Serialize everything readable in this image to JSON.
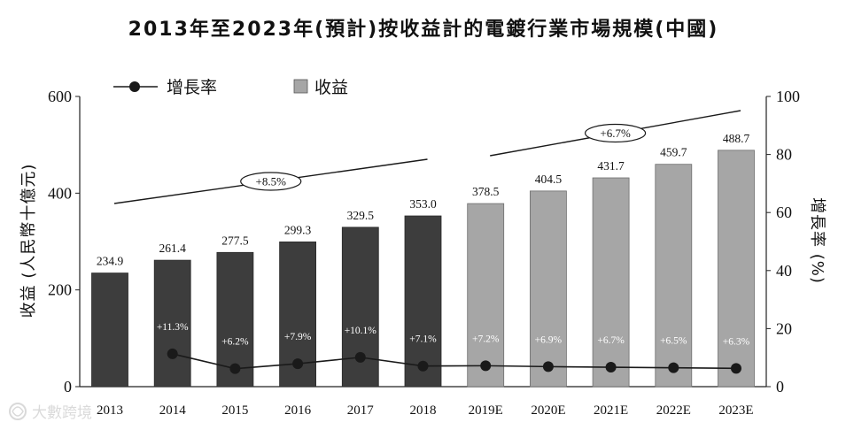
{
  "chart_data": {
    "type": "bar",
    "title": "2013年至2023年(預計)按收益計的電鍍行業市場規模(中國)",
    "ylabel_left": "收益 (人民幣十億元)",
    "ylabel_right": "增長率 (%)",
    "categories": [
      "2013",
      "2014",
      "2015",
      "2016",
      "2017",
      "2018",
      "2019E",
      "2020E",
      "2021E",
      "2022E",
      "2023E"
    ],
    "series": [
      {
        "name": "收益",
        "values": [
          234.9,
          261.4,
          277.5,
          299.3,
          329.5,
          353.0,
          378.5,
          404.5,
          431.7,
          459.7,
          488.7
        ],
        "value_labels": [
          "234.9",
          "261.4",
          "277.5",
          "299.3",
          "329.5",
          "353.0",
          "378.5",
          "404.5",
          "431.7",
          "459.7",
          "488.7"
        ]
      },
      {
        "name": "增長率",
        "values": [
          null,
          11.3,
          6.2,
          7.9,
          10.1,
          7.1,
          7.2,
          6.9,
          6.7,
          6.5,
          6.3
        ],
        "value_labels": [
          "",
          "+11.3%",
          "+6.2%",
          "+7.9%",
          "+10.1%",
          "+7.1%",
          "+7.2%",
          "+6.9%",
          "+6.7%",
          "+6.5%",
          "+6.3%"
        ]
      }
    ],
    "ylim_left": [
      0,
      600
    ],
    "yticks_left": [
      0,
      200,
      400,
      600
    ],
    "ylim_right": [
      0,
      100
    ],
    "yticks_right": [
      0,
      20,
      40,
      60,
      80,
      100
    ],
    "cagr_annotations": [
      {
        "label": "+8.5%",
        "from": "2013",
        "to": "2018"
      },
      {
        "label": "+6.7%",
        "from": "2019E",
        "to": "2023E"
      }
    ],
    "legend": {
      "position": "top-left",
      "items": [
        "增長率",
        "收益"
      ]
    },
    "colors": {
      "historical_bar": "#3d3d3d",
      "forecast_bar": "#a6a6a6",
      "line": "#1a1a1a",
      "axis": "#222222"
    }
  },
  "watermark": "大數跨境"
}
